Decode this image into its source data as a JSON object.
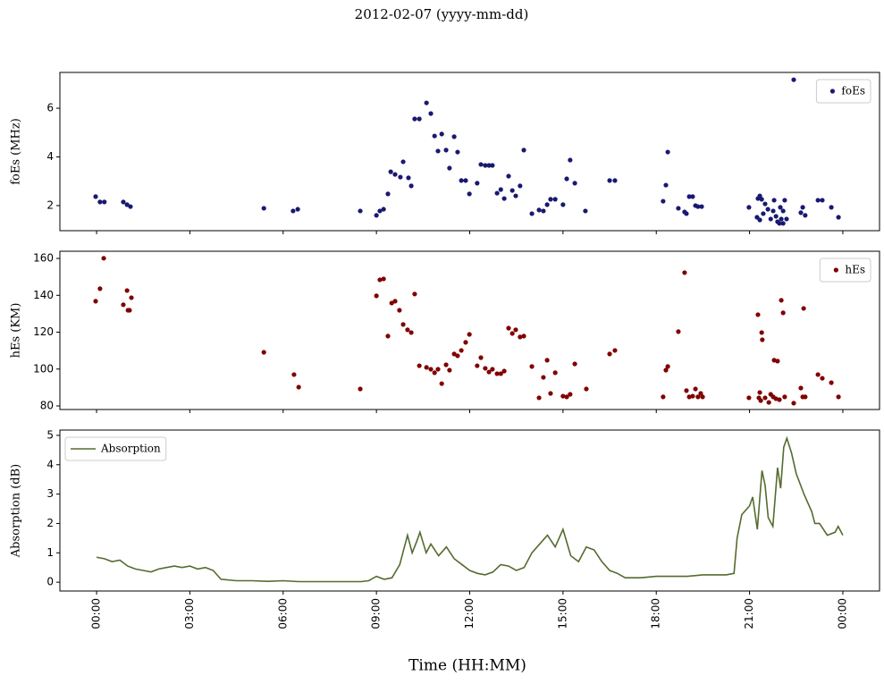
{
  "title": "2012-02-07 (yyyy-mm-dd)",
  "chart_data": [
    {
      "type": "scatter",
      "ylabel": "foEs (MHz)",
      "legend": "upper right",
      "xlim": [
        -1.18,
        25.18
      ],
      "ylim": [
        0.97,
        7.47
      ],
      "xticks": [
        0,
        3,
        6,
        9,
        12,
        15,
        18,
        21,
        24
      ],
      "yticks": [
        2,
        4,
        6
      ],
      "series": [
        {
          "name": "foEs",
          "color": "#191970",
          "x": [
            -0.03,
            0.11,
            0.25,
            0.86,
            0.98,
            1.09,
            5.38,
            6.32,
            6.47,
            8.48,
            9.0,
            9.11,
            9.23,
            9.37,
            9.46,
            9.6,
            9.77,
            9.86,
            10.03,
            10.12,
            10.23,
            10.38,
            10.61,
            10.75,
            10.87,
            10.98,
            11.1,
            11.24,
            11.35,
            11.5,
            11.61,
            11.73,
            11.87,
            11.99,
            12.24,
            12.36,
            12.5,
            12.62,
            12.73,
            12.88,
            13.0,
            13.11,
            13.25,
            13.37,
            13.48,
            13.62,
            13.74,
            14.0,
            14.23,
            14.37,
            14.49,
            14.6,
            14.75,
            15.0,
            15.12,
            15.23,
            15.38,
            15.72,
            16.5,
            16.67,
            18.22,
            18.31,
            18.37,
            18.71,
            18.91,
            18.97,
            19.06,
            19.17,
            19.26,
            19.34,
            19.46,
            20.98,
            21.27,
            21.33,
            21.39,
            21.24,
            21.33,
            21.44,
            21.5,
            21.59,
            21.68,
            21.76,
            21.79,
            21.85,
            21.9,
            21.99,
            22.02,
            22.08,
            22.13,
            21.96,
            22.08,
            22.19,
            22.42,
            22.65,
            22.71,
            22.79,
            23.2,
            23.34,
            23.63,
            23.86
          ],
          "values": [
            2.37,
            2.15,
            2.15,
            2.15,
            2.04,
            1.96,
            1.89,
            1.78,
            1.85,
            1.78,
            1.6,
            1.78,
            1.85,
            2.48,
            3.39,
            3.28,
            3.17,
            3.8,
            3.14,
            2.81,
            5.56,
            5.56,
            6.22,
            5.78,
            4.86,
            4.24,
            4.94,
            4.28,
            3.54,
            4.83,
            4.2,
            3.03,
            3.03,
            2.48,
            2.92,
            3.69,
            3.65,
            3.65,
            3.65,
            2.51,
            2.66,
            2.29,
            3.21,
            2.62,
            2.4,
            2.81,
            4.28,
            1.67,
            1.82,
            1.78,
            2.04,
            2.26,
            2.26,
            2.04,
            3.1,
            3.87,
            2.92,
            1.78,
            3.03,
            3.03,
            2.18,
            2.84,
            4.2,
            1.89,
            1.74,
            1.67,
            2.37,
            2.37,
            2.0,
            1.96,
            1.96,
            1.93,
            2.29,
            2.4,
            2.26,
            1.52,
            1.41,
            1.67,
            2.07,
            1.85,
            1.45,
            1.78,
            2.22,
            1.56,
            1.34,
            1.93,
            1.45,
            1.78,
            2.22,
            1.27,
            1.27,
            1.45,
            7.17,
            1.71,
            1.93,
            1.6,
            2.22,
            2.22,
            1.93,
            1.52
          ]
        }
      ]
    },
    {
      "type": "scatter",
      "ylabel": "hEs (KM)",
      "legend": "upper right",
      "xlim": [
        -1.18,
        25.18
      ],
      "ylim": [
        78.06,
        163.9
      ],
      "xticks": [
        0,
        3,
        6,
        9,
        12,
        15,
        18,
        21,
        24
      ],
      "yticks": [
        80,
        100,
        120,
        140,
        160
      ],
      "series": [
        {
          "name": "hEs",
          "color": "#800000",
          "x": [
            -0.03,
            0.11,
            0.23,
            0.86,
            0.98,
            1.01,
            1.06,
            1.12,
            5.38,
            6.35,
            6.5,
            8.48,
            9.0,
            9.11,
            9.23,
            9.37,
            9.49,
            9.6,
            9.74,
            9.86,
            10.0,
            10.12,
            10.23,
            10.38,
            10.61,
            10.75,
            10.87,
            10.98,
            11.1,
            11.24,
            11.35,
            11.5,
            11.61,
            11.73,
            11.87,
            11.99,
            12.24,
            12.36,
            12.5,
            12.62,
            12.73,
            12.88,
            13.0,
            13.11,
            13.25,
            13.37,
            13.48,
            13.62,
            13.74,
            14.0,
            14.23,
            14.37,
            14.49,
            14.6,
            14.75,
            15.0,
            15.12,
            15.23,
            15.38,
            15.75,
            16.5,
            16.67,
            18.22,
            18.31,
            18.37,
            18.71,
            18.91,
            18.97,
            19.06,
            19.17,
            19.26,
            19.34,
            19.43,
            19.49,
            20.98,
            21.27,
            21.33,
            21.39,
            21.41,
            21.3,
            21.36,
            21.5,
            21.62,
            21.68,
            21.76,
            21.79,
            21.85,
            21.9,
            21.96,
            22.02,
            22.08,
            22.13,
            22.42,
            22.65,
            22.71,
            22.74,
            22.79,
            23.2,
            23.34,
            23.63,
            23.86
          ],
          "values": [
            136.8,
            143.6,
            160.1,
            134.9,
            142.6,
            131.9,
            131.9,
            138.7,
            109.1,
            97.0,
            90.2,
            89.2,
            139.7,
            148.4,
            148.9,
            117.9,
            135.8,
            136.8,
            131.9,
            124.2,
            121.3,
            119.8,
            140.7,
            101.8,
            100.9,
            99.9,
            98.0,
            99.9,
            92.1,
            102.3,
            99.4,
            108.2,
            107.2,
            110.1,
            114.5,
            118.8,
            101.8,
            106.2,
            100.4,
            98.4,
            99.9,
            97.5,
            97.5,
            98.9,
            122.2,
            119.3,
            121.3,
            117.4,
            117.9,
            101.4,
            84.4,
            95.5,
            104.8,
            86.8,
            98.0,
            85.3,
            84.9,
            86.3,
            102.8,
            89.2,
            108.2,
            110.1,
            84.9,
            99.4,
            101.4,
            120.3,
            152.3,
            88.3,
            84.9,
            85.3,
            89.2,
            84.9,
            86.8,
            84.9,
            84.4,
            129.5,
            87.3,
            119.8,
            115.9,
            84.4,
            82.9,
            84.4,
            81.9,
            86.3,
            84.9,
            104.8,
            83.9,
            104.3,
            83.4,
            137.3,
            130.5,
            84.9,
            81.5,
            89.7,
            84.9,
            132.9,
            84.9,
            97.0,
            95.0,
            92.6,
            84.9
          ]
        }
      ]
    },
    {
      "type": "line",
      "ylabel": "Absorption (dB)",
      "xlabel": "Time (HH:MM)",
      "legend": "upper left",
      "xlim": [
        -1.18,
        25.18
      ],
      "ylim": [
        -0.3,
        5.18
      ],
      "xticks": [
        {
          "value": 0,
          "label": "00:00"
        },
        {
          "value": 3,
          "label": "03:00"
        },
        {
          "value": 6,
          "label": "06:00"
        },
        {
          "value": 9,
          "label": "09:00"
        },
        {
          "value": 12,
          "label": "12:00"
        },
        {
          "value": 15,
          "label": "15:00"
        },
        {
          "value": 18,
          "label": "18:00"
        },
        {
          "value": 21,
          "label": "21:00"
        },
        {
          "value": 24,
          "label": "00:00"
        }
      ],
      "yticks": [
        0,
        1,
        2,
        3,
        4,
        5
      ],
      "series": [
        {
          "name": "Absorption",
          "color": "#556b2f",
          "x": [
            0,
            0.25,
            0.5,
            0.75,
            1,
            1.25,
            1.5,
            1.75,
            2,
            2.25,
            2.5,
            2.75,
            3,
            3.25,
            3.5,
            3.75,
            4,
            4.5,
            5,
            5.5,
            6,
            6.5,
            7,
            7.5,
            8,
            8.5,
            8.75,
            9,
            9.25,
            9.5,
            9.75,
            10,
            10.15,
            10.3,
            10.4,
            10.6,
            10.75,
            11,
            11.25,
            11.5,
            11.75,
            12,
            12.25,
            12.5,
            12.75,
            13,
            13.25,
            13.5,
            13.75,
            14,
            14.25,
            14.5,
            14.75,
            15,
            15.25,
            15.5,
            15.75,
            16,
            16.25,
            16.5,
            16.75,
            17,
            17.5,
            18,
            18.5,
            19,
            19.5,
            20,
            20.25,
            20.5,
            20.6,
            20.75,
            21,
            21.1,
            21.25,
            21.4,
            21.5,
            21.6,
            21.75,
            21.9,
            22,
            22.1,
            22.2,
            22.35,
            22.5,
            22.75,
            23,
            23.1,
            23.25,
            23.5,
            23.75,
            23.85,
            24
          ],
          "values": [
            0.85,
            0.8,
            0.7,
            0.75,
            0.55,
            0.45,
            0.4,
            0.35,
            0.45,
            0.5,
            0.55,
            0.5,
            0.55,
            0.45,
            0.5,
            0.4,
            0.1,
            0.05,
            0.05,
            0.03,
            0.05,
            0.02,
            0.02,
            0.02,
            0.02,
            0.02,
            0.05,
            0.2,
            0.1,
            0.15,
            0.6,
            1.6,
            1.0,
            1.4,
            1.7,
            1.0,
            1.3,
            0.9,
            1.2,
            0.8,
            0.6,
            0.4,
            0.3,
            0.25,
            0.35,
            0.6,
            0.55,
            0.4,
            0.5,
            1.0,
            1.3,
            1.6,
            1.2,
            1.8,
            0.9,
            0.7,
            1.2,
            1.1,
            0.7,
            0.4,
            0.3,
            0.15,
            0.15,
            0.2,
            0.2,
            0.2,
            0.25,
            0.25,
            0.25,
            0.3,
            1.5,
            2.3,
            2.6,
            2.9,
            1.8,
            3.8,
            3.3,
            2.2,
            1.9,
            3.9,
            3.2,
            4.6,
            4.9,
            4.4,
            3.7,
            3.0,
            2.4,
            2.0,
            2.0,
            1.6,
            1.7,
            1.9,
            1.6
          ]
        }
      ]
    }
  ]
}
